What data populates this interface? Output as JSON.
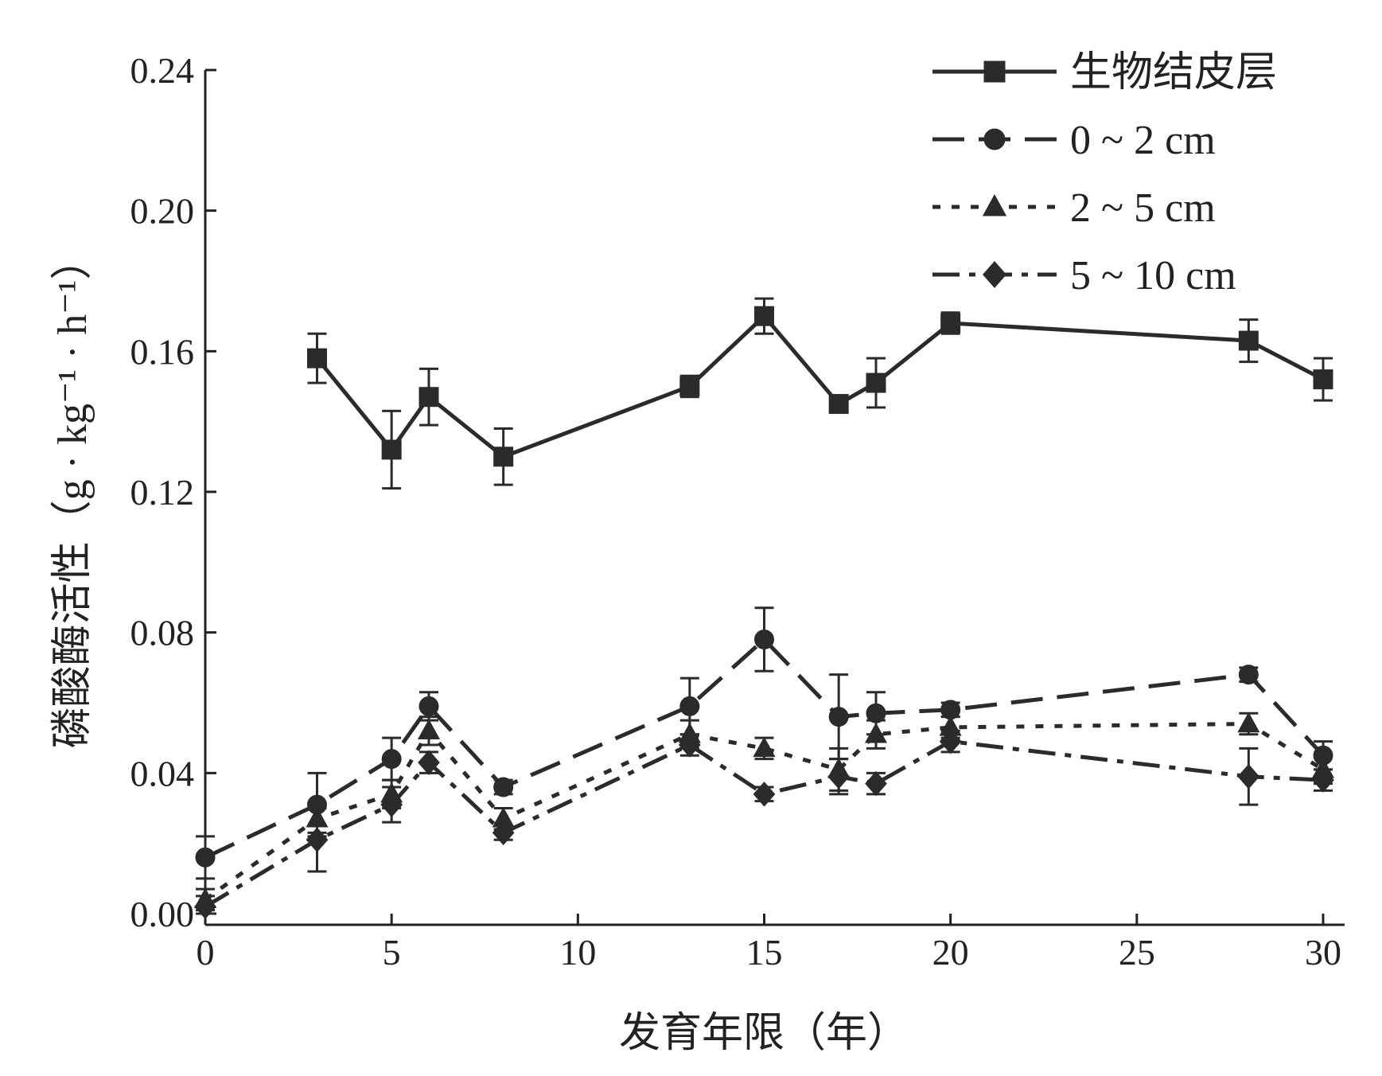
{
  "chart_data": {
    "type": "line",
    "xlabel": "发育年限（年）",
    "ylabel": "磷酸酶活性（g · kg⁻¹ · h⁻¹）",
    "xlim": [
      0,
      30
    ],
    "ylim": [
      0,
      0.24
    ],
    "xticks": [
      "0",
      "5",
      "10",
      "15",
      "20",
      "25",
      "30"
    ],
    "yticks": [
      "0.00",
      "0.04",
      "0.08",
      "0.12",
      "0.16",
      "0.20",
      "0.24"
    ],
    "legend_position": "top-right",
    "grid": false,
    "series": [
      {
        "name": "生物结皮层",
        "marker": "square",
        "dash": "solid",
        "x": [
          3,
          5,
          6,
          8,
          13,
          15,
          17,
          18,
          20,
          28,
          30
        ],
        "y": [
          0.158,
          0.132,
          0.147,
          0.13,
          0.15,
          0.17,
          0.145,
          0.151,
          0.168,
          0.163,
          0.152
        ],
        "err": [
          0.007,
          0.011,
          0.008,
          0.008,
          0.003,
          0.005,
          0.002,
          0.007,
          0.003,
          0.006,
          0.006
        ]
      },
      {
        "name": "0 ~ 2 cm",
        "marker": "circle",
        "dash": "long-dash",
        "x": [
          0,
          3,
          5,
          6,
          8,
          13,
          15,
          17,
          18,
          20,
          28,
          30
        ],
        "y": [
          0.016,
          0.031,
          0.044,
          0.059,
          0.036,
          0.059,
          0.078,
          0.056,
          0.057,
          0.058,
          0.068,
          0.045
        ],
        "err": [
          0.006,
          0.009,
          0.006,
          0.004,
          0.002,
          0.008,
          0.009,
          0.012,
          0.006,
          0.002,
          0.002,
          0.004
        ]
      },
      {
        "name": "2 ~ 5 cm",
        "marker": "triangle",
        "dash": "dotted",
        "x": [
          0,
          3,
          5,
          6,
          8,
          13,
          15,
          17,
          18,
          20,
          28,
          30
        ],
        "y": [
          0.004,
          0.027,
          0.034,
          0.052,
          0.027,
          0.051,
          0.047,
          0.041,
          0.051,
          0.053,
          0.054,
          0.041
        ],
        "err": [
          0.003,
          0.004,
          0.004,
          0.004,
          0.003,
          0.004,
          0.003,
          0.006,
          0.004,
          0.003,
          0.003,
          0.004
        ]
      },
      {
        "name": "5 ~ 10 cm",
        "marker": "diamond",
        "dash": "dash-dot",
        "x": [
          0,
          3,
          5,
          6,
          8,
          13,
          15,
          17,
          18,
          20,
          28,
          30
        ],
        "y": [
          0.002,
          0.021,
          0.031,
          0.043,
          0.023,
          0.048,
          0.034,
          0.039,
          0.037,
          0.049,
          0.039,
          0.038
        ],
        "err": [
          0.003,
          0.009,
          0.005,
          0.003,
          0.002,
          0.003,
          0.002,
          0.005,
          0.003,
          0.003,
          0.008,
          0.003
        ]
      }
    ]
  }
}
